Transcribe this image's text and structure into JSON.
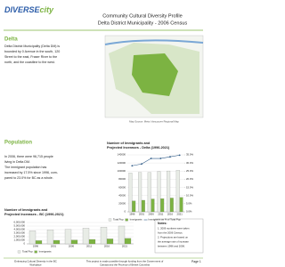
{
  "header": {
    "logo": [
      "DIVERSE",
      "city"
    ],
    "title": "Community Cultural Diversity Profile",
    "subtitle": "Delta District  Municipality - 2006 Census"
  },
  "intro": {
    "heading": "Delta",
    "lines": [
      "Delta District Municipality (Delta DM) is",
      "bounded by 0 Avenue in the south, 120",
      "Street to the east, Fraser River to the",
      "north, and the coastline to the west."
    ],
    "map_caption": "Map Source: Metro Vancouver Regional Map"
  },
  "population": {
    "heading": "Population",
    "lines": [
      "In 2006, there were 96,715 people",
      "living in Delta DM.",
      "The immigrant population has",
      "increased by 17.5% since 1996, com-",
      "pared to 23.0% for BC as a whole."
    ]
  },
  "chart_data": [
    {
      "type": "bar",
      "title": [
        "Number of Immigrants and",
        "Projected Increases - Delta (1996-2021)"
      ],
      "categories": [
        "1996",
        "2001",
        "2006",
        "2011",
        "2016",
        "2021"
      ],
      "series": [
        {
          "name": "Total Pop",
          "color": "#e8ece6",
          "values": [
            95400,
            96950,
            96715,
            99000,
            100500,
            102000
          ]
        },
        {
          "name": "Immigrants",
          "color": "#7cb342",
          "values": [
            27000,
            28500,
            31700,
            32500,
            34000,
            35500
          ]
        },
        {
          "name": "Immigrants as % of Total Pop",
          "color": "#2e5a87",
          "type": "line",
          "axis": "y2",
          "values": [
            28.3,
            29.4,
            32.8,
            32.8,
            33.8,
            34.8
          ]
        }
      ],
      "ylim": [
        0,
        140000
      ],
      "yticks": [
        0,
        20000,
        40000,
        60000,
        80000,
        100000,
        120000,
        140000
      ],
      "y2lim": [
        0,
        35
      ],
      "y2ticks": [
        {
          "value": 0,
          "label": "0.0%"
        },
        {
          "value": 5,
          "label": "5.0%"
        },
        {
          "value": 10,
          "label": "10.0%"
        },
        {
          "value": 15,
          "label": "15.0%"
        },
        {
          "value": 20,
          "label": "20.0%"
        },
        {
          "value": 25,
          "label": "25.0%"
        },
        {
          "value": 30,
          "label": "30.0%"
        },
        {
          "value": 35,
          "label": "35.0%"
        }
      ],
      "grid": true
    },
    {
      "type": "bar",
      "title": [
        "Number of Immigrants and",
        "Projected Increases - BC (1996-2021)"
      ],
      "categories": [
        "1996",
        "2001",
        "2006",
        "2011",
        "2016",
        "2021"
      ],
      "series": [
        {
          "name": "Total Pop",
          "color": "#e8ece6",
          "values": [
            3700000,
            3900000,
            4100000,
            4400000,
            4700000,
            5000000
          ]
        },
        {
          "name": "Immigrants",
          "color": "#7cb342",
          "values": [
            900000,
            1000000,
            1100000,
            1250000,
            1400000,
            1550000
          ]
        }
      ],
      "ylim": [
        0,
        6000000
      ],
      "yticks": [
        0,
        {
          "value": 1000000,
          "label": "1,000,000"
        },
        {
          "value": 2000000,
          "label": "2,000,000"
        },
        {
          "value": 3000000,
          "label": "3,000,000"
        },
        {
          "value": 4000000,
          "label": "4,000,000"
        },
        {
          "value": 5000000,
          "label": "5,000,000"
        },
        {
          "value": 6000000,
          "label": "6,000,000"
        }
      ],
      "grid": true
    }
  ],
  "notes": {
    "heading": "Notes:",
    "lines": [
      "1. 2006 numbers were taken",
      "from the 2006 Census.",
      "2. Projections are based on",
      "the average rate of increase",
      "between 1996 and 2006."
    ]
  },
  "footer": {
    "left": [
      "Embracing Cultural Diversity in the BC",
      "Workplace"
    ],
    "center": [
      "This project is made possible through funding from the Government of",
      "Canada and the Province of British Columbia"
    ],
    "page": "Page 1"
  }
}
